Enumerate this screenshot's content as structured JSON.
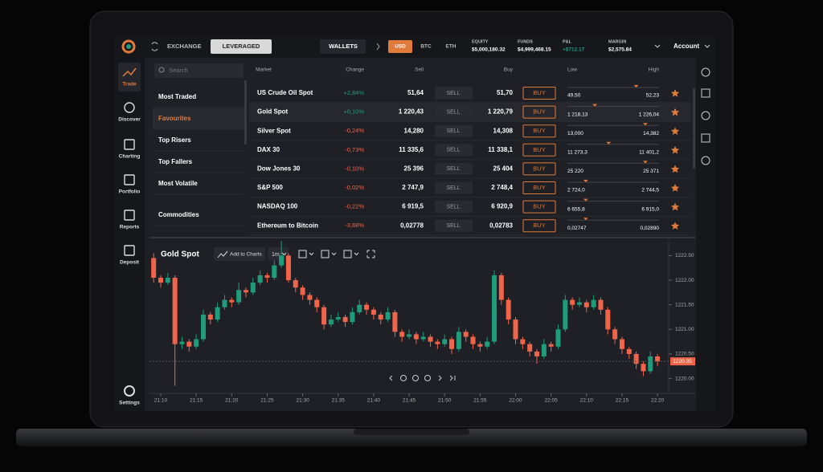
{
  "header": {
    "tabs": [
      "EXCHANGE",
      "LEVERAGED"
    ],
    "wallets": "WALLETS",
    "currencies": [
      "USD",
      "BTC",
      "ETH"
    ],
    "stats": [
      {
        "label": "EQUITY",
        "value": "$5,000,180.32"
      },
      {
        "label": "FUNDS",
        "value": "$4,999,468.15"
      },
      {
        "label": "P&L",
        "value": "+$712.17"
      },
      {
        "label": "MARGIN",
        "value": "$2,575.84"
      }
    ],
    "account": "Account"
  },
  "sidebar": [
    "Trade",
    "Discover",
    "Charting",
    "Portfolio",
    "Reports",
    "Deposit",
    "Settings"
  ],
  "search_placeholder": "Search",
  "menu": [
    "Most Traded",
    "Favourites",
    "Top Risers",
    "Top Fallers",
    "Most Volatile",
    "Commodities"
  ],
  "table": {
    "columns": [
      "Market",
      "Change",
      "Sell",
      "Buy",
      "Low",
      "High"
    ],
    "sell_button": "SELL",
    "buy_button": "BUY",
    "rows": [
      {
        "market": "US Crude Oil Spot",
        "change": "+2,84%",
        "sell": "51,64",
        "buy": "51,70",
        "low": "49,50",
        "high": "52,23"
      },
      {
        "market": "Gold Spot",
        "change": "+0,10%",
        "sell": "1 220,43",
        "buy": "1 220,79",
        "low": "1 218,13",
        "high": "1 226,04"
      },
      {
        "market": "Silver Spot",
        "change": "-0,24%",
        "sell": "14,280",
        "buy": "14,308",
        "low": "13,000",
        "high": "14,382"
      },
      {
        "market": "DAX 30",
        "change": "-0,73%",
        "sell": "11 335,6",
        "buy": "11 338,1",
        "low": "11 273,3",
        "high": "11 401,2"
      },
      {
        "market": "Dow Jones 30",
        "change": "-0,10%",
        "sell": "25 396",
        "buy": "25 404",
        "low": "25 220",
        "high": "25 371"
      },
      {
        "market": "S&P 500",
        "change": "-0,02%",
        "sell": "2 747,9",
        "buy": "2 748,4",
        "low": "2 724,0",
        "high": "2 744,5"
      },
      {
        "market": "NASDAQ 100",
        "change": "-0,22%",
        "sell": "6 919,5",
        "buy": "6 920,9",
        "low": "6 655,8",
        "high": "6 915,0"
      },
      {
        "market": "Ethereum to Bitcoin",
        "change": "-3,68%",
        "sell": "0,02778",
        "buy": "0,02783",
        "low": "0,02747",
        "high": "0,02890"
      }
    ]
  },
  "chart_data": {
    "type": "candlestick",
    "title": "Gold Spot",
    "toolbar": [
      "Add to Charts",
      "1m"
    ],
    "up_color": "#1f9c7a",
    "down_color": "#f0654a",
    "ylim": [
      1219.7,
      1222.8
    ],
    "yticks": [
      {
        "value": 1220,
        "label": "1220.00"
      },
      {
        "value": 1220.5,
        "label": "1220.50"
      },
      {
        "value": 1221,
        "label": "1221.00"
      },
      {
        "value": 1221.5,
        "label": "1221.50"
      },
      {
        "value": 1222,
        "label": "1222.00"
      },
      {
        "value": 1222.5,
        "label": "1222.50"
      }
    ],
    "last_price": 1220.35,
    "xticks": [
      "21:10",
      "21:15",
      "21:20",
      "21:25",
      "21:30",
      "21:35",
      "21:40",
      "21:45",
      "21:50",
      "21:55",
      "22:00",
      "22:05",
      "22:10",
      "22:15",
      "22:20"
    ],
    "candles": {
      "open": [
        1222.45,
        1222.05,
        1221.95,
        1222.05,
        1220.7,
        1220.75,
        1220.65,
        1220.8,
        1221.3,
        1221.2,
        1221.45,
        1221.6,
        1221.55,
        1221.8,
        1221.75,
        1221.95,
        1222.1,
        1222.05,
        1222.3,
        1222.5,
        1222.0,
        1221.85,
        1221.7,
        1221.6,
        1221.45,
        1221.1,
        1221.2,
        1221.25,
        1221.15,
        1221.35,
        1221.5,
        1221.4,
        1221.3,
        1221.2,
        1221.35,
        1220.95,
        1220.85,
        1220.9,
        1220.8,
        1220.85,
        1220.75,
        1220.7,
        1220.8,
        1220.6,
        1220.95,
        1220.85,
        1220.7,
        1220.65,
        1220.75,
        1222.1,
        1221.6,
        1221.2,
        1220.8,
        1220.7,
        1220.55,
        1220.45,
        1220.7,
        1220.65,
        1221.0,
        1221.6,
        1221.5,
        1221.55,
        1221.45,
        1221.6,
        1221.4,
        1221.0,
        1220.8,
        1220.6,
        1220.5,
        1220.3,
        1220.15,
        1220.45
      ],
      "high": [
        1222.55,
        1222.1,
        1222.15,
        1222.1,
        1220.85,
        1220.8,
        1220.9,
        1221.4,
        1221.35,
        1221.55,
        1221.7,
        1221.65,
        1221.95,
        1221.85,
        1222.05,
        1222.2,
        1222.15,
        1222.4,
        1222.8,
        1222.55,
        1222.05,
        1221.9,
        1221.75,
        1221.65,
        1221.5,
        1221.3,
        1221.35,
        1221.3,
        1221.45,
        1221.6,
        1221.55,
        1221.45,
        1221.35,
        1221.45,
        1221.4,
        1221.0,
        1221.0,
        1220.95,
        1220.95,
        1220.9,
        1220.8,
        1220.9,
        1220.85,
        1221.05,
        1221.0,
        1220.9,
        1220.75,
        1220.85,
        1222.2,
        1222.15,
        1221.65,
        1221.25,
        1220.85,
        1220.75,
        1220.6,
        1220.8,
        1220.75,
        1221.1,
        1221.7,
        1221.65,
        1221.65,
        1221.6,
        1221.7,
        1221.65,
        1221.45,
        1221.05,
        1220.85,
        1220.65,
        1220.55,
        1220.35,
        1220.55,
        1220.5
      ],
      "low": [
        1221.95,
        1221.85,
        1221.9,
        1219.85,
        1220.6,
        1220.55,
        1220.6,
        1220.75,
        1221.1,
        1221.15,
        1221.4,
        1221.45,
        1221.5,
        1221.65,
        1221.7,
        1221.9,
        1221.95,
        1222.0,
        1222.25,
        1221.95,
        1221.75,
        1221.6,
        1221.5,
        1221.35,
        1221.0,
        1221.05,
        1221.15,
        1221.05,
        1221.1,
        1221.3,
        1221.3,
        1221.2,
        1221.1,
        1221.15,
        1220.85,
        1220.75,
        1220.8,
        1220.7,
        1220.75,
        1220.65,
        1220.6,
        1220.65,
        1220.5,
        1220.55,
        1220.75,
        1220.6,
        1220.55,
        1220.6,
        1220.7,
        1221.5,
        1221.1,
        1220.7,
        1220.6,
        1220.45,
        1220.3,
        1220.4,
        1220.55,
        1220.6,
        1220.95,
        1221.4,
        1221.45,
        1221.35,
        1221.4,
        1221.3,
        1220.9,
        1220.7,
        1220.5,
        1220.4,
        1220.2,
        1220.05,
        1220.1,
        1220.25
      ],
      "close": [
        1222.05,
        1221.95,
        1222.05,
        1220.7,
        1220.75,
        1220.65,
        1220.8,
        1221.3,
        1221.2,
        1221.45,
        1221.6,
        1221.55,
        1221.8,
        1221.75,
        1221.95,
        1222.1,
        1222.05,
        1222.3,
        1222.5,
        1222.0,
        1221.85,
        1221.7,
        1221.6,
        1221.45,
        1221.1,
        1221.2,
        1221.25,
        1221.15,
        1221.35,
        1221.5,
        1221.4,
        1221.3,
        1221.2,
        1221.35,
        1220.95,
        1220.85,
        1220.9,
        1220.8,
        1220.85,
        1220.75,
        1220.7,
        1220.8,
        1220.6,
        1220.95,
        1220.85,
        1220.7,
        1220.65,
        1220.75,
        1222.1,
        1221.6,
        1221.2,
        1220.8,
        1220.7,
        1220.55,
        1220.45,
        1220.7,
        1220.65,
        1221.0,
        1221.6,
        1221.5,
        1221.55,
        1221.45,
        1221.6,
        1221.4,
        1221.0,
        1220.8,
        1220.6,
        1220.5,
        1220.3,
        1220.15,
        1220.45,
        1220.35
      ]
    }
  }
}
